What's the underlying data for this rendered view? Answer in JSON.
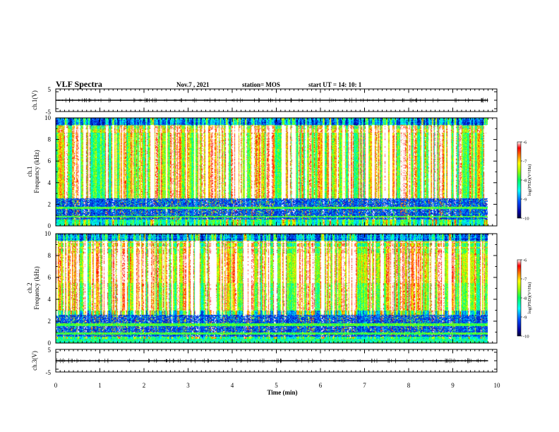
{
  "header": {
    "title": "VLF Spectra",
    "date": "Nov.7  , 2021",
    "station": "station= MOS",
    "start": "start  UT  =   14: 10: 1"
  },
  "chart_data": [
    {
      "type": "line",
      "panel": "ch1-waveform",
      "ylabel": "ch.1(V)",
      "ylim": [
        -5,
        5
      ],
      "yticks": [
        "5",
        "-5"
      ],
      "xlim": [
        0,
        10
      ],
      "series": [
        {
          "values": [
            0,
            0
          ]
        }
      ],
      "x": [
        0,
        9.8
      ]
    },
    {
      "type": "heatmap",
      "panel": "ch1-spectrogram",
      "ylabel": "ch.1\nFrequency  (kHz)",
      "ylim": [
        0,
        10
      ],
      "yticks": [
        "0",
        "2",
        "4",
        "6",
        "8",
        "10"
      ],
      "xlim": [
        0,
        10
      ],
      "data_extent_min": 9.8,
      "colorbar": {
        "label": "log(PSD)(V²/Hz)",
        "range": [
          -10,
          -6
        ],
        "ticks": [
          "-6",
          "-7",
          "-8",
          "-9",
          "-10"
        ]
      }
    },
    {
      "type": "heatmap",
      "panel": "ch2-spectrogram",
      "ylabel": "ch.2\nFrequency  (kHz)",
      "ylim": [
        0,
        10
      ],
      "yticks": [
        "0",
        "2",
        "4",
        "6",
        "8",
        "10"
      ],
      "xlim": [
        0,
        10
      ],
      "data_extent_min": 9.8,
      "colorbar": {
        "label": "log(PSD)(V²/Hz)",
        "range": [
          -10,
          -6
        ],
        "ticks": [
          "-6",
          "-7",
          "-8",
          "-9",
          "-10"
        ]
      }
    },
    {
      "type": "line",
      "panel": "ch3-waveform",
      "ylabel": "ch.3(V)",
      "ylim": [
        -5,
        5
      ],
      "yticks": [
        "5",
        "-5"
      ],
      "xlim": [
        0,
        10
      ],
      "xlabel": "Time  (min)",
      "xticks": [
        "0",
        "1",
        "2",
        "3",
        "4",
        "5",
        "6",
        "7",
        "8",
        "9",
        "10"
      ],
      "series": [
        {
          "values": [
            0,
            0
          ]
        }
      ],
      "x": [
        0,
        9.8
      ]
    }
  ],
  "colors": {
    "colormap": [
      "#000033",
      "#00008b",
      "#0000ff",
      "#0080ff",
      "#00ffff",
      "#00ff60",
      "#80ff00",
      "#ffff00",
      "#ff8000",
      "#ff0000",
      "#ffffff"
    ]
  }
}
